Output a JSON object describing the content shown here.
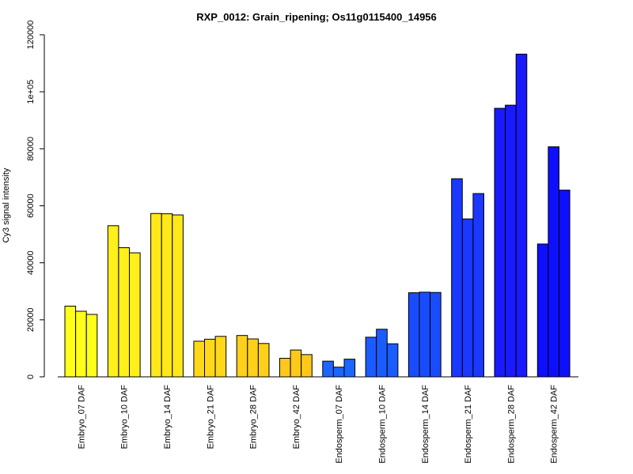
{
  "chart_data": {
    "type": "bar",
    "title": "RXP_0012: Grain_ripening; Os11g0115400_14956",
    "ylabel": "Cy3 signal intensity",
    "xlabel": "",
    "ylim": [
      0,
      120000
    ],
    "y_ticks": [
      {
        "value": 0,
        "label": "0"
      },
      {
        "value": 20000,
        "label": "20000"
      },
      {
        "value": 40000,
        "label": "40000"
      },
      {
        "value": 60000,
        "label": "60000"
      },
      {
        "value": 80000,
        "label": "80000"
      },
      {
        "value": 100000,
        "label": "1e+05"
      },
      {
        "value": 120000,
        "label": "120000"
      }
    ],
    "categories": [
      "Embryo_07 DAF",
      "Embryo_10 DAF",
      "Embryo_14 DAF",
      "Embryo_21 DAF",
      "Embryo_28 DAF",
      "Embryo_42 DAF",
      "Endosperm_07 DAF",
      "Endosperm_10 DAF",
      "Endosperm_14 DAF",
      "Endosperm_21 DAF",
      "Endosperm_28 DAF",
      "Endosperm_42 DAF"
    ],
    "category_colors": [
      "#ffff1a",
      "#ffef1a",
      "#ffe81a",
      "#ffd81a",
      "#ffd01a",
      "#ffc81a",
      "#1a66ff",
      "#1a5cff",
      "#1a4cff",
      "#1a38ff",
      "#1a1aff",
      "#0f0fff"
    ],
    "series": [
      {
        "values": [
          24800,
          53000,
          57300,
          12500,
          14500,
          6500,
          5500,
          13900,
          29500,
          69500,
          94200,
          46600
        ]
      },
      {
        "values": [
          23000,
          45300,
          57200,
          13200,
          13300,
          9400,
          3400,
          16700,
          29700,
          55400,
          95300,
          80700
        ]
      },
      {
        "values": [
          21900,
          43500,
          56800,
          14200,
          11700,
          7800,
          6200,
          11600,
          29600,
          64300,
          113200,
          65500
        ]
      }
    ],
    "grid": false,
    "legend": "none"
  }
}
